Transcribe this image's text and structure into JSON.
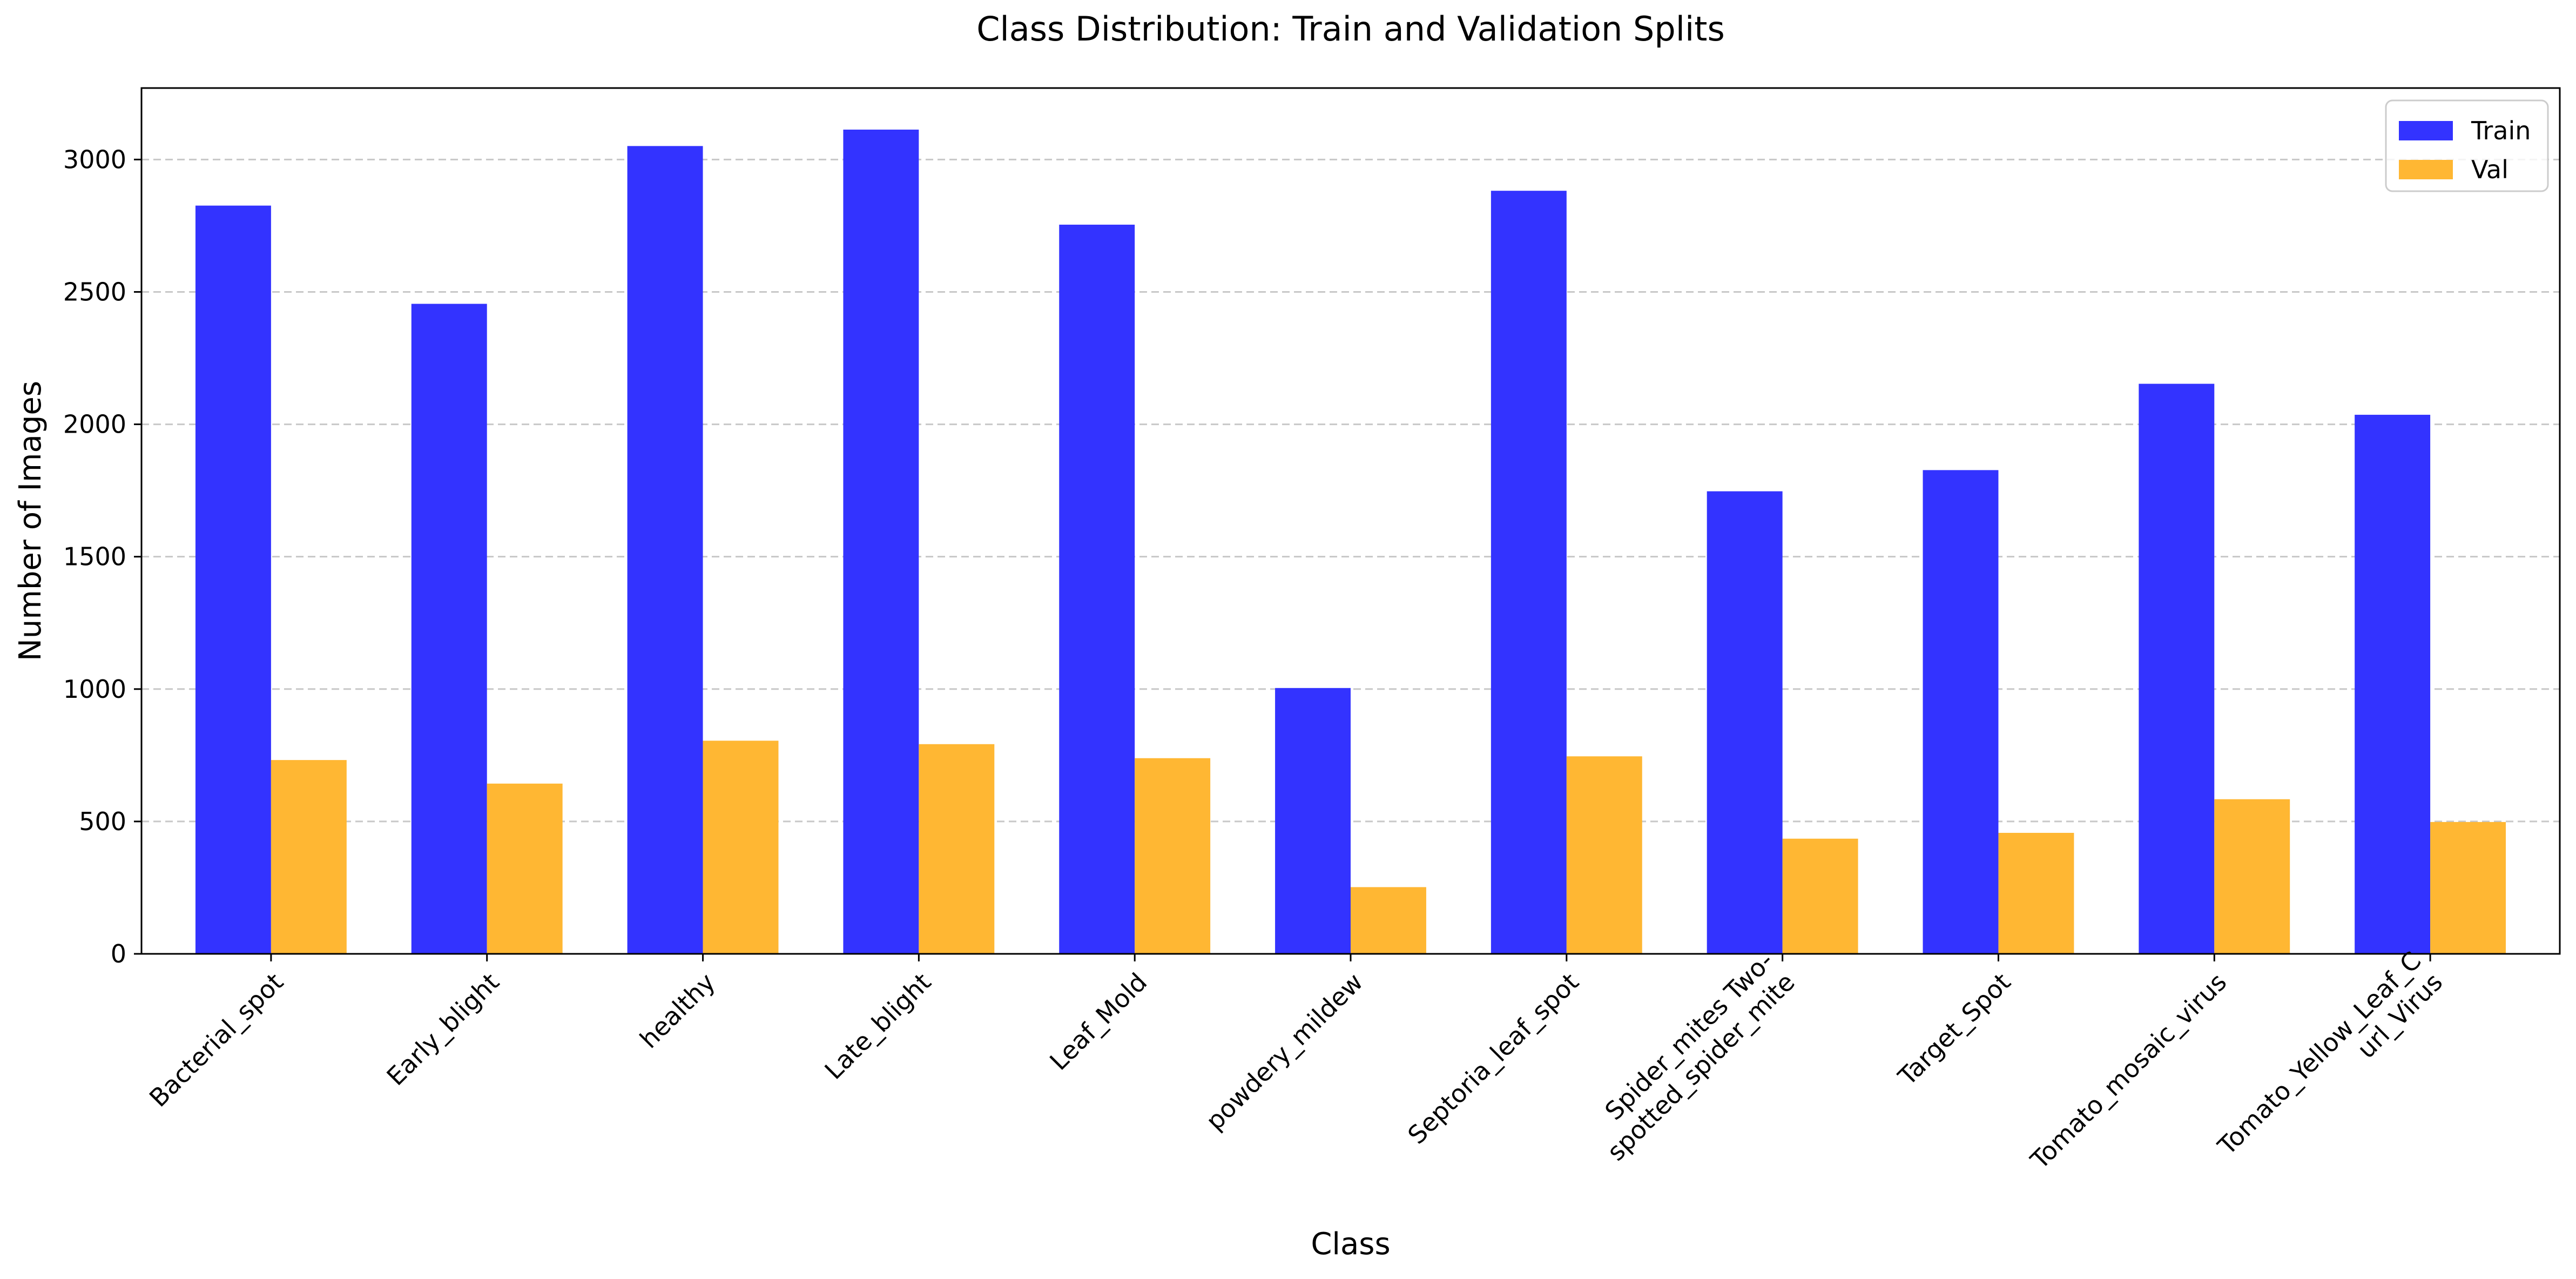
{
  "chart_data": {
    "type": "bar",
    "title": "Class Distribution: Train and Validation Splits",
    "xlabel": "Class",
    "ylabel": "Number of Images",
    "categories": [
      "Bacterial_spot",
      "Early_blight",
      "healthy",
      "Late_blight",
      "Leaf_Mold",
      "powdery_mildew",
      "Septoria_leaf_spot",
      "Spider_mites Two-\nspotted_spider_mite",
      "Target_Spot",
      "Tomato_mosaic_virus",
      "Tomato_Yellow_Leaf_C\nurl_Virus"
    ],
    "series": [
      {
        "name": "Train",
        "color": "#3333ff",
        "values": [
          2826,
          2455,
          3051,
          3113,
          2754,
          1004,
          2882,
          1747,
          1827,
          2153,
          2036
        ]
      },
      {
        "name": "Val",
        "color": "#ffb733",
        "values": [
          732,
          643,
          805,
          792,
          739,
          252,
          746,
          435,
          457,
          584,
          498
        ]
      }
    ],
    "ylim": [
      0,
      3270
    ],
    "yticks": [
      0,
      500,
      1000,
      1500,
      2000,
      2500,
      3000
    ],
    "grid": "y-dashed",
    "legend": "top-right"
  }
}
